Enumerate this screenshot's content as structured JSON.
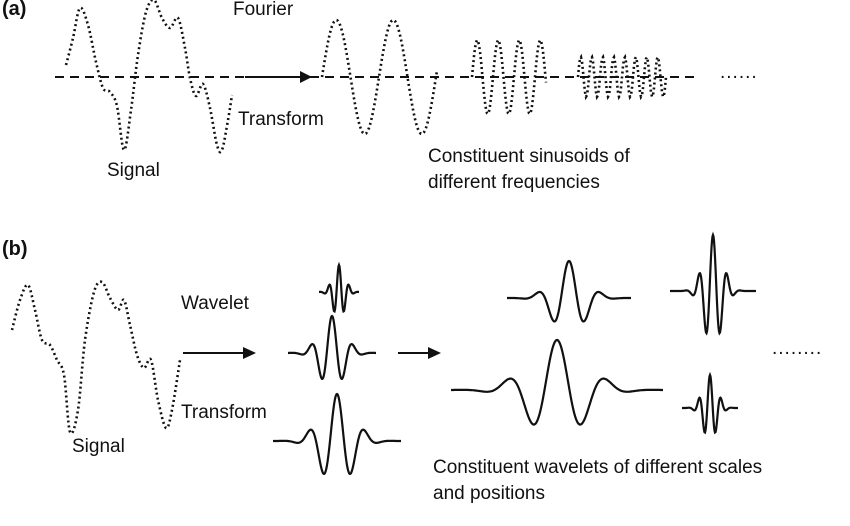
{
  "panel_a": {
    "label": "(a)",
    "transform_top": "Fourier",
    "transform_bottom": "Transform",
    "signal_label": "Signal",
    "caption_line1": "Constituent sinusoids of",
    "caption_line2": "different frequencies",
    "continuation": "......"
  },
  "panel_b": {
    "label": "(b)",
    "transform_top": "Wavelet",
    "transform_bottom": "Transform",
    "signal_label": "Signal",
    "caption_line1": "Constituent wavelets of different scales",
    "caption_line2": "and positions",
    "continuation": "........"
  },
  "colors": {
    "ink": "#111111",
    "background": "#ffffff"
  }
}
